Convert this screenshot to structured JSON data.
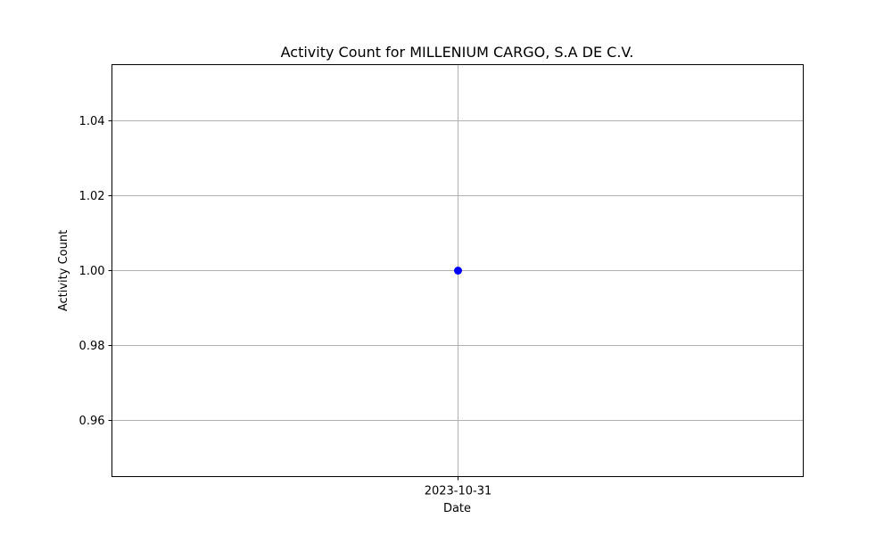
{
  "chart_data": {
    "type": "line",
    "title": "Activity Count for MILLENIUM CARGO, S.A DE C.V.",
    "xlabel": "Date",
    "ylabel": "Activity Count",
    "x": [
      "2023-10-31"
    ],
    "series": [
      {
        "values": [
          1.0
        ],
        "color": "#0000ff",
        "marker": "circle"
      }
    ],
    "ylim": [
      0.945,
      1.055
    ],
    "yticks": [
      0.96,
      0.98,
      1.0,
      1.02,
      1.04
    ],
    "ytick_labels": [
      "0.96",
      "0.98",
      "1.00",
      "1.02",
      "1.04"
    ],
    "xtick_labels": [
      "2023-10-31"
    ],
    "grid": true,
    "grid_color": "#b0b0b0",
    "axis_color": "#000000"
  }
}
